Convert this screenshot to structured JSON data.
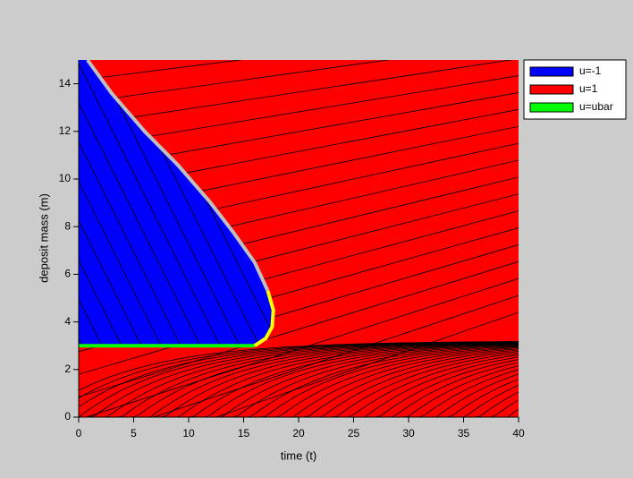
{
  "chart_data": {
    "type": "region",
    "xlabel": "time (t)",
    "ylabel": "deposit mass (m)",
    "xlim": [
      0,
      40
    ],
    "ylim": [
      0,
      15
    ],
    "xticks": [
      0,
      5,
      10,
      15,
      20,
      25,
      30,
      35,
      40
    ],
    "yticks": [
      0,
      2,
      4,
      6,
      8,
      10,
      12,
      14
    ],
    "legend": "outside upper right",
    "series": [
      {
        "name": "u=1",
        "color": "#ff0000",
        "kind": "area",
        "x": [
          0,
          40,
          40,
          0
        ],
        "y": [
          0,
          0,
          15,
          15
        ]
      },
      {
        "name": "u=-1",
        "color": "#0000ff",
        "kind": "area",
        "x": [
          0,
          0.8,
          3,
          6,
          9,
          12,
          14,
          16,
          17.2,
          17.7,
          17.6,
          17,
          16,
          0
        ],
        "y": [
          15,
          15,
          13.6,
          12,
          10.6,
          9,
          7.8,
          6.5,
          5.3,
          4.5,
          3.8,
          3.3,
          3,
          3
        ]
      },
      {
        "name": "u=ubar",
        "color": "#00ff00",
        "kind": "line",
        "x": [
          0,
          16
        ],
        "y": [
          3,
          3
        ]
      },
      {
        "color": "#c0c0c0",
        "kind": "line",
        "x": [
          0.8,
          3,
          6,
          9,
          12,
          14,
          16,
          17.2
        ],
        "y": [
          15,
          13.6,
          12,
          10.6,
          9,
          7.8,
          6.5,
          5.3
        ]
      },
      {
        "color": "#ffff00",
        "kind": "line",
        "x": [
          17.2,
          17.7,
          17.6,
          17,
          16
        ],
        "y": [
          5.3,
          4.5,
          3.8,
          3.3,
          3
        ]
      }
    ]
  }
}
